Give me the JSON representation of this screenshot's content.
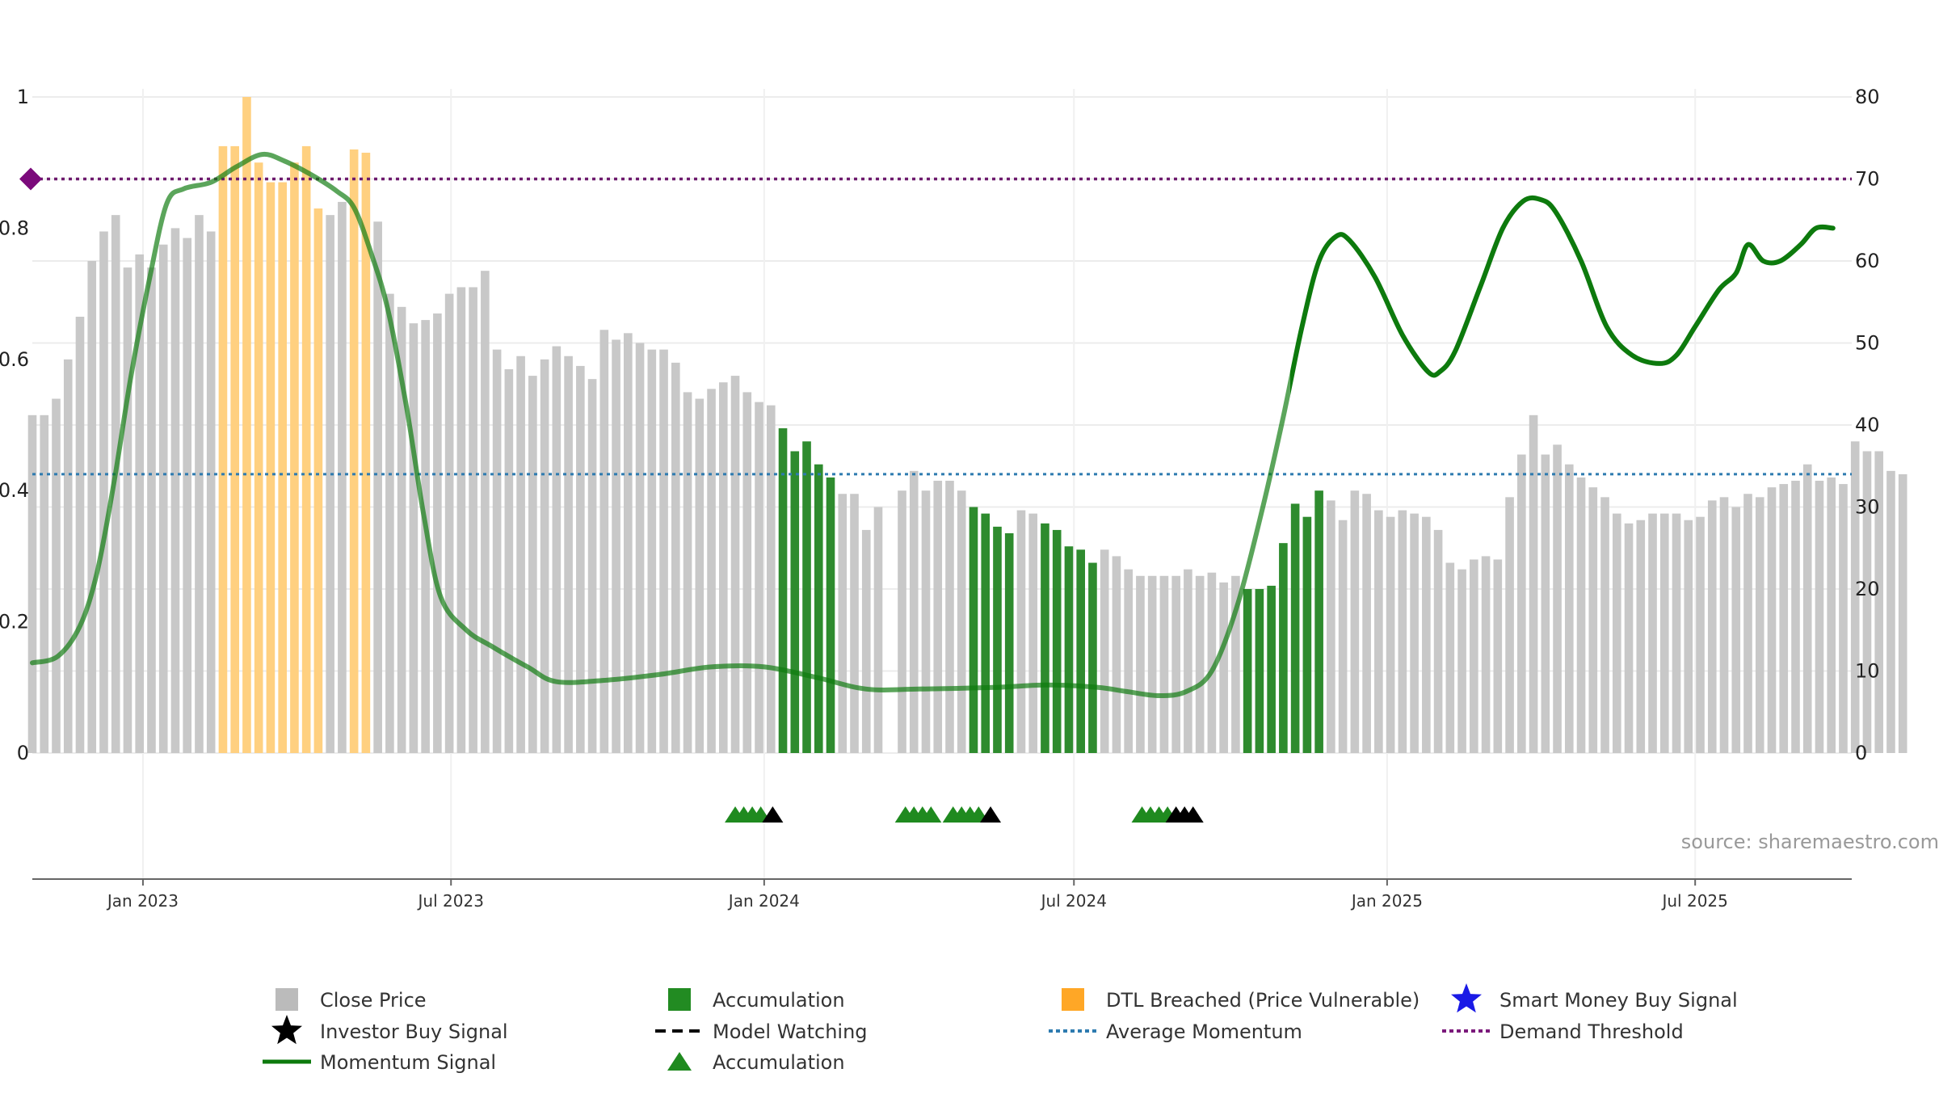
{
  "chart_data": {
    "type": "bar",
    "source": "source: sharemaestro.com",
    "left_axis": {
      "ticks": [
        0,
        0.2,
        0.4,
        0.6,
        0.8,
        1
      ],
      "labels": [
        "0",
        "0.2",
        "0.4",
        "0.6",
        "0.8",
        "1"
      ],
      "ylim": [
        0,
        1.0
      ]
    },
    "right_axis": {
      "ticks": [
        0,
        10,
        20,
        30,
        40,
        50,
        60,
        70,
        80
      ],
      "labels": [
        "0",
        "10",
        "20",
        "30",
        "40",
        "50",
        "60",
        "70",
        "80"
      ],
      "ylim": [
        0,
        80
      ]
    },
    "x_axis": {
      "range": [
        "2022-10-28",
        "2025-10-01"
      ],
      "ticks": [
        {
          "date": "2023-01-01",
          "label": "Jan 2023"
        },
        {
          "date": "2023-07-01",
          "label": "Jul 2023"
        },
        {
          "date": "2024-01-01",
          "label": "Jan 2024"
        },
        {
          "date": "2024-07-01",
          "label": "Jul 2024"
        },
        {
          "date": "2025-01-01",
          "label": "Jan 2025"
        },
        {
          "date": "2025-07-01",
          "label": "Jul 2025"
        }
      ]
    },
    "grid": true,
    "bars": {
      "start": "2022-10-28",
      "step_days": 7,
      "values": [
        0.515,
        0.515,
        0.54,
        0.6,
        0.665,
        0.75,
        0.795,
        0.82,
        0.74,
        0.76,
        0.74,
        0.775,
        0.8,
        0.785,
        0.82,
        0.795,
        0.925,
        0.925,
        1.0,
        0.9,
        0.87,
        0.87,
        0.9,
        0.925,
        0.83,
        0.82,
        0.84,
        0.92,
        0.915,
        0.81,
        0.7,
        0.68,
        0.655,
        0.66,
        0.67,
        0.7,
        0.71,
        0.71,
        0.735,
        0.615,
        0.585,
        0.605,
        0.575,
        0.6,
        0.62,
        0.605,
        0.59,
        0.57,
        0.645,
        0.63,
        0.64,
        0.625,
        0.615,
        0.615,
        0.595,
        0.55,
        0.54,
        0.555,
        0.565,
        0.575,
        0.55,
        0.535,
        0.53,
        0.495,
        0.46,
        0.475,
        0.44,
        0.42,
        0.395,
        0.395,
        0.34,
        0.375,
        null,
        0.4,
        0.43,
        0.4,
        0.415,
        0.415,
        0.4,
        0.375,
        0.365,
        0.345,
        0.335,
        0.37,
        0.365,
        0.35,
        0.34,
        0.315,
        0.31,
        0.29,
        0.31,
        0.3,
        0.28,
        0.27,
        0.27,
        0.27,
        0.27,
        0.28,
        0.27,
        0.275,
        0.26,
        0.27,
        0.25,
        0.25,
        0.255,
        0.32,
        0.38,
        0.36,
        0.4,
        0.385,
        0.355,
        0.4,
        0.395,
        0.37,
        0.36,
        0.37,
        0.365,
        0.36,
        0.34,
        0.29,
        0.28,
        0.295,
        0.3,
        0.295,
        0.39,
        0.455,
        0.515,
        0.455,
        0.47,
        0.44,
        0.42,
        0.405,
        0.39,
        0.365,
        0.35,
        0.355,
        0.365,
        0.365,
        0.365,
        0.355,
        0.36,
        0.385,
        0.39,
        0.375,
        0.395,
        0.39,
        0.405,
        0.41,
        0.415,
        0.44,
        0.415,
        0.42,
        0.41,
        0.475,
        0.46,
        0.46,
        0.43,
        0.425
      ],
      "status": [
        "g",
        "g",
        "g",
        "g",
        "g",
        "g",
        "g",
        "g",
        "g",
        "g",
        "g",
        "g",
        "g",
        "g",
        "g",
        "g",
        "o",
        "o",
        "o",
        "o",
        "o",
        "o",
        "o",
        "o",
        "o",
        "g",
        "g",
        "o",
        "o",
        "g",
        "g",
        "g",
        "g",
        "g",
        "g",
        "g",
        "g",
        "g",
        "g",
        "g",
        "g",
        "g",
        "g",
        "g",
        "g",
        "g",
        "g",
        "g",
        "g",
        "g",
        "g",
        "g",
        "g",
        "g",
        "g",
        "g",
        "g",
        "g",
        "g",
        "g",
        "g",
        "g",
        "g",
        "a",
        "a",
        "a",
        "a",
        "a",
        "g",
        "g",
        "g",
        "g",
        "g",
        "g",
        "g",
        "g",
        "g",
        "g",
        "g",
        "a",
        "a",
        "a",
        "a",
        "g",
        "g",
        "a",
        "a",
        "a",
        "a",
        "a",
        "g",
        "g",
        "g",
        "g",
        "g",
        "g",
        "g",
        "g",
        "g",
        "g",
        "g",
        "g",
        "a",
        "a",
        "a",
        "a",
        "a",
        "a",
        "a",
        "g",
        "g",
        "g",
        "g",
        "g",
        "g",
        "g",
        "g",
        "g",
        "g",
        "g",
        "g",
        "g",
        "g",
        "g",
        "g",
        "g",
        "g",
        "g",
        "g",
        "g",
        "g",
        "g",
        "g",
        "g",
        "g",
        "g",
        "g",
        "g",
        "g",
        "g",
        "g",
        "g",
        "g",
        "g",
        "g",
        "g",
        "g",
        "g",
        "g",
        "g",
        "g",
        "g",
        "g",
        "g",
        "g",
        "g",
        "g",
        "g"
      ]
    },
    "momentum_line": {
      "points": [
        [
          "2022-10-28",
          11
        ],
        [
          "2022-11-12",
          11.8
        ],
        [
          "2022-11-25",
          15.5
        ],
        [
          "2022-12-05",
          22
        ],
        [
          "2022-12-15",
          33
        ],
        [
          "2022-12-25",
          46
        ],
        [
          "2023-01-05",
          58
        ],
        [
          "2023-01-15",
          67
        ],
        [
          "2023-01-25",
          68.8
        ],
        [
          "2023-02-10",
          69.6
        ],
        [
          "2023-02-25",
          71.5
        ],
        [
          "2023-03-12",
          73
        ],
        [
          "2023-03-25",
          72.2
        ],
        [
          "2023-04-10",
          70.5
        ],
        [
          "2023-04-25",
          68.5
        ],
        [
          "2023-05-05",
          66.5
        ],
        [
          "2023-05-15",
          61
        ],
        [
          "2023-05-25",
          54
        ],
        [
          "2023-06-05",
          42
        ],
        [
          "2023-06-15",
          29
        ],
        [
          "2023-06-25",
          19
        ],
        [
          "2023-07-10",
          15
        ],
        [
          "2023-07-25",
          13
        ],
        [
          "2023-08-15",
          10.5
        ],
        [
          "2023-09-01",
          8.7
        ],
        [
          "2023-10-01",
          8.9
        ],
        [
          "2023-11-01",
          9.6
        ],
        [
          "2023-12-01",
          10.5
        ],
        [
          "2024-01-01",
          10.5
        ],
        [
          "2024-02-01",
          9.2
        ],
        [
          "2024-03-01",
          7.8
        ],
        [
          "2024-04-01",
          7.8
        ],
        [
          "2024-05-15",
          8
        ],
        [
          "2024-06-15",
          8.3
        ],
        [
          "2024-07-15",
          8
        ],
        [
          "2024-08-01",
          7.5
        ],
        [
          "2024-08-20",
          7.0
        ],
        [
          "2024-09-05",
          7.5
        ],
        [
          "2024-09-20",
          10
        ],
        [
          "2024-10-05",
          18
        ],
        [
          "2024-10-20",
          30
        ],
        [
          "2024-11-01",
          41
        ],
        [
          "2024-11-12",
          52
        ],
        [
          "2024-11-22",
          60
        ],
        [
          "2024-12-02",
          63
        ],
        [
          "2024-12-10",
          62.5
        ],
        [
          "2024-12-25",
          58
        ],
        [
          "2025-01-10",
          51
        ],
        [
          "2025-01-25",
          46.5
        ],
        [
          "2025-02-01",
          46.5
        ],
        [
          "2025-02-10",
          49
        ],
        [
          "2025-02-25",
          57
        ],
        [
          "2025-03-10",
          64
        ],
        [
          "2025-03-22",
          67.3
        ],
        [
          "2025-04-01",
          67.5
        ],
        [
          "2025-04-10",
          66
        ],
        [
          "2025-04-25",
          60
        ],
        [
          "2025-05-10",
          52
        ],
        [
          "2025-05-25",
          48.5
        ],
        [
          "2025-06-10",
          47.5
        ],
        [
          "2025-06-20",
          48.5
        ],
        [
          "2025-07-01",
          52
        ],
        [
          "2025-07-15",
          56.5
        ],
        [
          "2025-07-25",
          58.5
        ],
        [
          "2025-08-01",
          62
        ],
        [
          "2025-08-10",
          60
        ],
        [
          "2025-08-20",
          60
        ],
        [
          "2025-09-01",
          62
        ],
        [
          "2025-09-10",
          64
        ],
        [
          "2025-09-20",
          64
        ]
      ],
      "faded_until": "2024-11-05"
    },
    "average_momentum": 34,
    "demand_threshold": 70,
    "accumulation_markers": [
      {
        "date": "2023-12-15",
        "color": "green"
      },
      {
        "date": "2023-12-20",
        "color": "green"
      },
      {
        "date": "2023-12-25",
        "color": "green"
      },
      {
        "date": "2023-12-30",
        "color": "green"
      },
      {
        "date": "2024-01-06",
        "color": "black"
      },
      {
        "date": "2024-03-24",
        "color": "green"
      },
      {
        "date": "2024-03-29",
        "color": "green"
      },
      {
        "date": "2024-04-03",
        "color": "green"
      },
      {
        "date": "2024-04-08",
        "color": "green"
      },
      {
        "date": "2024-04-21",
        "color": "green"
      },
      {
        "date": "2024-04-26",
        "color": "green"
      },
      {
        "date": "2024-05-01",
        "color": "green"
      },
      {
        "date": "2024-05-06",
        "color": "green"
      },
      {
        "date": "2024-05-13",
        "color": "black"
      },
      {
        "date": "2024-08-10",
        "color": "green"
      },
      {
        "date": "2024-08-15",
        "color": "green"
      },
      {
        "date": "2024-08-20",
        "color": "green"
      },
      {
        "date": "2024-08-25",
        "color": "green"
      },
      {
        "date": "2024-08-30",
        "color": "black"
      },
      {
        "date": "2024-09-04",
        "color": "black"
      },
      {
        "date": "2024-09-09",
        "color": "black"
      }
    ],
    "legend": [
      {
        "label": "Close Price",
        "symbol": "square",
        "color": "#bbbbbb"
      },
      {
        "label": "Accumulation",
        "symbol": "square",
        "color": "#228b22"
      },
      {
        "label": "DTL Breached (Price Vulnerable)",
        "symbol": "square",
        "color": "#ffa726"
      },
      {
        "label": "Smart Money Buy Signal",
        "symbol": "star",
        "color": "#1a1ae6"
      },
      {
        "label": "Investor Buy Signal",
        "symbol": "star",
        "color": "#000000"
      },
      {
        "label": "Model Watching",
        "symbol": "dash",
        "color": "#000000"
      },
      {
        "label": "Average Momentum",
        "symbol": "dotted",
        "color": "#2e7bb0"
      },
      {
        "label": "Demand Threshold",
        "symbol": "dotted",
        "color": "#7b1a7b"
      },
      {
        "label": "Momentum Signal",
        "symbol": "line",
        "color": "#0d7a0d"
      },
      {
        "label": "Accumulation",
        "symbol": "triangle",
        "color": "#1f8a1f"
      }
    ],
    "colors": {
      "close_price": "#c8c8c8",
      "dtl_breached": "#ffd080",
      "accumulation": "#2e8b2e",
      "momentum": "#0d7a0d",
      "average_momentum": "#2e7bb0",
      "demand_threshold": "#6e1a6e"
    }
  }
}
